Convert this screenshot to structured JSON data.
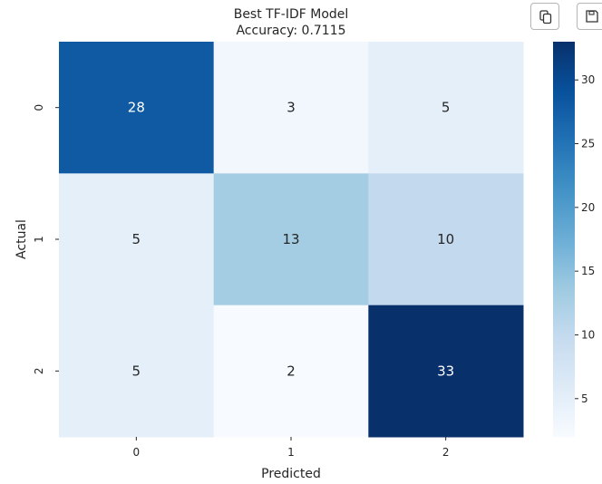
{
  "toolbar": {
    "copy_icon": "copy-icon",
    "save_icon": "save-icon"
  },
  "chart_data": {
    "type": "heatmap",
    "title": "Best TF-IDF Model",
    "subtitle": "Accuracy: 0.7115",
    "xlabel": "Predicted",
    "ylabel": "Actual",
    "x_categories": [
      "0",
      "1",
      "2"
    ],
    "y_categories": [
      "0",
      "1",
      "2"
    ],
    "values": [
      [
        28,
        3,
        5
      ],
      [
        5,
        13,
        10
      ],
      [
        5,
        2,
        33
      ]
    ],
    "colormap": "Blues",
    "color_range": [
      2,
      33
    ],
    "colorbar_ticks": [
      5,
      10,
      15,
      20,
      25,
      30
    ],
    "colors": {
      "low": "#f7fbff",
      "high": "#08306b",
      "text_dark": "#262626",
      "text_light": "#ffffff"
    }
  }
}
